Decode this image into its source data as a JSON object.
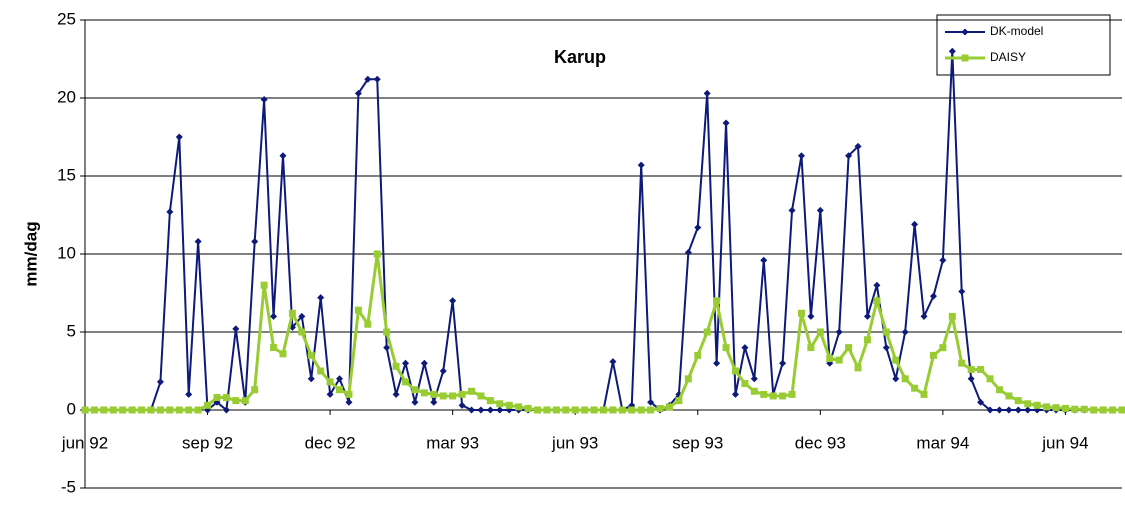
{
  "chart_data": {
    "type": "line",
    "title": "Karup",
    "ylabel": "mm/dag",
    "categories": [
      "jun 92",
      null,
      null,
      null,
      null,
      null,
      null,
      null,
      null,
      null,
      null,
      null,
      null,
      "sep 92",
      null,
      null,
      null,
      null,
      null,
      null,
      null,
      null,
      null,
      null,
      null,
      null,
      "dec 92",
      null,
      null,
      null,
      null,
      null,
      null,
      null,
      null,
      null,
      null,
      null,
      null,
      "mar 93",
      null,
      null,
      null,
      null,
      null,
      null,
      null,
      null,
      null,
      null,
      null,
      null,
      "jun 93",
      null,
      null,
      null,
      null,
      null,
      null,
      null,
      null,
      null,
      null,
      null,
      null,
      "sep 93",
      null,
      null,
      null,
      null,
      null,
      null,
      null,
      null,
      null,
      null,
      null,
      null,
      "dec 93",
      null,
      null,
      null,
      null,
      null,
      null,
      null,
      null,
      null,
      null,
      null,
      null,
      "mar 94",
      null,
      null,
      null,
      null,
      null,
      null,
      null,
      null,
      null,
      null,
      null,
      null,
      "jun 94",
      null,
      null,
      null,
      null,
      null,
      null
    ],
    "series": [
      {
        "name": "DK-model",
        "color": "#0d1a7a",
        "marker": "diamond",
        "values": [
          0,
          0,
          0,
          0,
          0,
          0,
          0,
          0,
          1.8,
          12.7,
          17.5,
          1,
          10.8,
          0,
          0.5,
          0,
          5.2,
          0.5,
          10.8,
          19.9,
          6,
          16.3,
          5.3,
          6,
          2,
          7.2,
          1,
          2,
          0.5,
          20.3,
          21.2,
          21.2,
          4,
          1,
          3,
          0.5,
          3,
          0.5,
          2.5,
          7,
          0.3,
          0,
          0,
          0,
          0,
          0,
          0,
          0,
          0,
          0,
          0,
          0,
          0,
          0,
          0,
          0,
          3.1,
          0,
          0.3,
          15.7,
          0.5,
          0,
          0.3,
          1,
          10.1,
          11.7,
          20.3,
          3,
          18.4,
          1,
          4,
          2,
          9.6,
          1,
          3,
          12.8,
          16.3,
          6,
          12.8,
          3,
          5,
          16.3,
          16.9,
          6,
          8,
          4,
          2,
          5,
          11.9,
          6,
          7.3,
          9.6,
          23,
          7.6,
          2,
          0.5,
          0,
          0,
          0,
          0,
          0,
          0,
          0,
          0,
          0,
          0,
          0,
          0,
          0,
          0,
          0
        ]
      },
      {
        "name": "DAISY",
        "color": "#99cc33",
        "marker": "square",
        "values": [
          0,
          0,
          0,
          0,
          0,
          0,
          0,
          0,
          0,
          0,
          0,
          0,
          0,
          0.3,
          0.8,
          0.8,
          0.6,
          0.6,
          1.3,
          8,
          4,
          3.6,
          6.2,
          5,
          3.5,
          2.5,
          1.8,
          1.3,
          1,
          6.4,
          5.5,
          10,
          5,
          2.8,
          1.8,
          1.3,
          1.1,
          1,
          0.9,
          0.9,
          1,
          1.2,
          0.9,
          0.6,
          0.4,
          0.3,
          0.2,
          0.1,
          0,
          0,
          0,
          0,
          0,
          0,
          0,
          0,
          0,
          0,
          0,
          0,
          0,
          0.1,
          0.2,
          0.6,
          2,
          3.5,
          5,
          7,
          4,
          2.5,
          1.7,
          1.2,
          1,
          0.9,
          0.9,
          1,
          6.2,
          4,
          5,
          3.3,
          3.2,
          4,
          2.7,
          4.5,
          7,
          5,
          3.2,
          2,
          1.4,
          1,
          3.5,
          4,
          6,
          3,
          2.6,
          2.6,
          2,
          1.3,
          0.9,
          0.6,
          0.4,
          0.3,
          0.2,
          0.15,
          0.1,
          0.05,
          0.05,
          0,
          0,
          0,
          0
        ]
      }
    ],
    "ylim": [
      -5,
      25
    ],
    "yticks": [
      -5,
      0,
      5,
      10,
      15,
      20,
      25
    ],
    "grid": true,
    "legend": "top-right"
  }
}
